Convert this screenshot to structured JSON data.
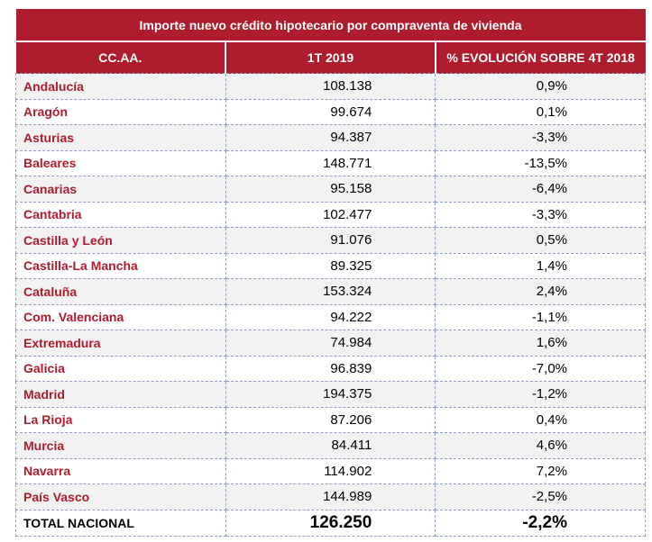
{
  "title": "Importe nuevo crédito hipotecario por compraventa de vivienda",
  "headers": [
    "CC.AA.",
    "1T 2019",
    "% EVOLUCIÓN SOBRE 4T 2018"
  ],
  "rows": [
    [
      "Andalucía",
      "108.138",
      "0,9%"
    ],
    [
      "Aragón",
      "99.674",
      "0,1%"
    ],
    [
      "Asturias",
      "94.387",
      "-3,3%"
    ],
    [
      "Baleares",
      "148.771",
      "-13,5%"
    ],
    [
      "Canarias",
      "95.158",
      "-6,4%"
    ],
    [
      "Cantabria",
      "102.477",
      "-3,3%"
    ],
    [
      "Castilla y León",
      "91.076",
      "0,5%"
    ],
    [
      "Castilla-La Mancha",
      "89.325",
      "1,4%"
    ],
    [
      "Cataluña",
      "153.324",
      "2,4%"
    ],
    [
      "Com. Valenciana",
      "94.222",
      "-1,1%"
    ],
    [
      "Extremadura",
      "74.984",
      "1,6%"
    ],
    [
      "Galicia",
      "96.839",
      "-7,0%"
    ],
    [
      "Madrid",
      "194.375",
      "-1,2%"
    ],
    [
      "La Rioja",
      "87.206",
      "0,4%"
    ],
    [
      "Murcia",
      "84.411",
      "4,6%"
    ],
    [
      "Navarra",
      "114.902",
      "7,2%"
    ],
    [
      "País Vasco",
      "144.989",
      "-2,5%"
    ]
  ],
  "total": [
    "TOTAL NACIONAL",
    "126.250",
    "-2,2%"
  ],
  "colors": {
    "header_bg": "#ae1c2e",
    "region_text": "#ae1c2e",
    "stripe": "#f2f2f2"
  }
}
